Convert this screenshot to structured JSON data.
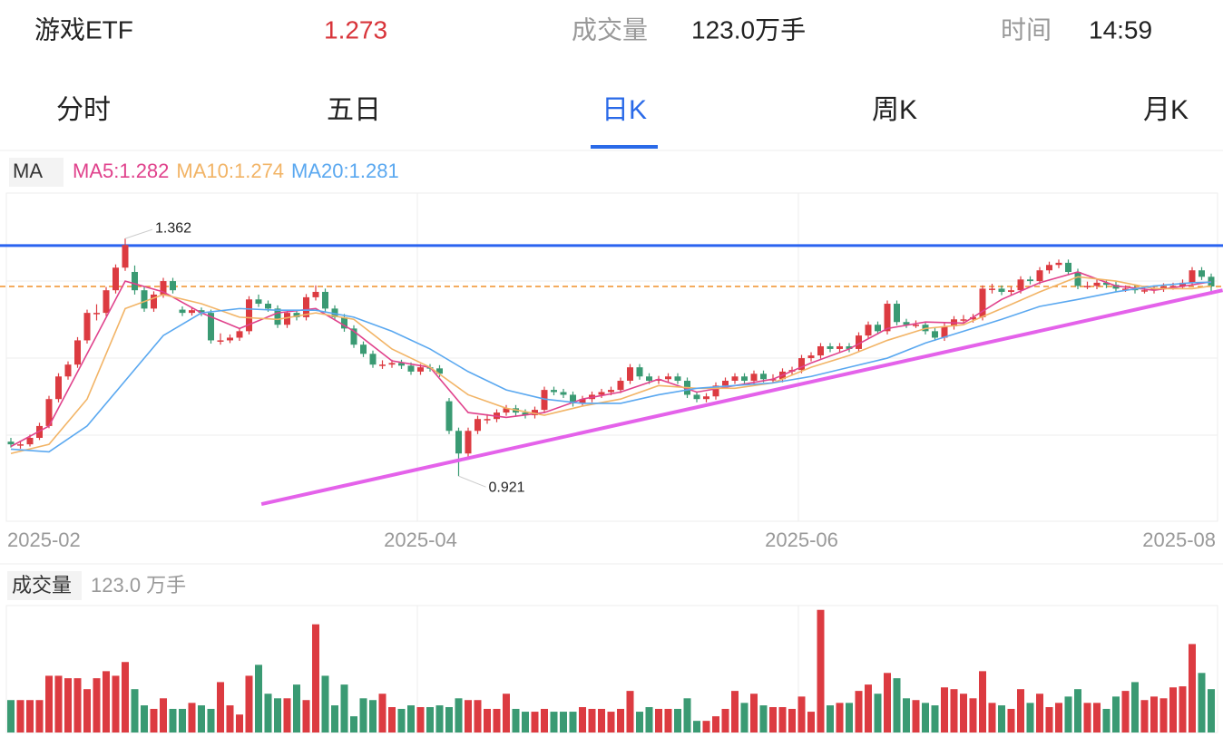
{
  "header": {
    "name": "游戏ETF",
    "price": "1.273",
    "volume_label": "成交量",
    "volume": "123.0万手",
    "time_label": "时间",
    "time": "14:59"
  },
  "tabs": [
    "分时",
    "五日",
    "日K",
    "周K",
    "月K"
  ],
  "active_tab": "日K",
  "chart_data": {
    "type": "candlestick",
    "indicator": "MA",
    "up_color": "#dc3b41",
    "down_color": "#3a9a73",
    "ylim": [
      0.854,
      1.443
    ],
    "xlabels": [
      {
        "index": 0,
        "label": "2025-02"
      },
      {
        "index": 43,
        "label": "2025-04"
      },
      {
        "index": 83,
        "label": "2025-06"
      },
      {
        "index": 126,
        "label": "2025-08"
      }
    ],
    "max_label": "1.362",
    "min_label": "0.921",
    "hlines": [
      {
        "value": 1.349,
        "color": "#2a63f0",
        "style": "solid"
      },
      {
        "value": 1.273,
        "color": "#f0902a",
        "style": "dashed"
      }
    ],
    "trendline": {
      "x": [
        26.3,
        127.2
      ],
      "y": [
        0.869,
        1.266
      ],
      "color": "#e462ea"
    },
    "ma_x": [
      0,
      4,
      8,
      12,
      16,
      20,
      24,
      28,
      32,
      36,
      40,
      44,
      48,
      52,
      56,
      60,
      64,
      68,
      72,
      76,
      80,
      84,
      88,
      92,
      96,
      100,
      104,
      108,
      112,
      116,
      120,
      124,
      126
    ],
    "series": [
      {
        "name": "MA5:1.282",
        "color": "#e0428c",
        "values": [
          0.976,
          1.014,
          1.148,
          1.283,
          1.263,
          1.224,
          1.195,
          1.224,
          1.232,
          1.19,
          1.135,
          1.123,
          1.039,
          1.03,
          1.039,
          1.064,
          1.077,
          1.101,
          1.077,
          1.089,
          1.101,
          1.131,
          1.157,
          1.195,
          1.207,
          1.205,
          1.249,
          1.28,
          1.3,
          1.274,
          1.266,
          1.276,
          1.282
        ]
      },
      {
        "name": "MA10:1.274",
        "color": "#f2b466",
        "values": [
          0.963,
          0.98,
          1.064,
          1.232,
          1.258,
          1.241,
          1.216,
          1.212,
          1.224,
          1.212,
          1.157,
          1.123,
          1.072,
          1.047,
          1.034,
          1.051,
          1.064,
          1.089,
          1.084,
          1.084,
          1.094,
          1.123,
          1.145,
          1.173,
          1.195,
          1.202,
          1.232,
          1.263,
          1.291,
          1.283,
          1.269,
          1.269,
          1.274
        ]
      },
      {
        "name": "MA20:1.281",
        "color": "#5aa8f0",
        "values": [
          0.971,
          0.966,
          1.014,
          1.098,
          1.182,
          1.224,
          1.232,
          1.229,
          1.229,
          1.216,
          1.19,
          1.157,
          1.115,
          1.081,
          1.064,
          1.056,
          1.056,
          1.072,
          1.084,
          1.089,
          1.094,
          1.106,
          1.123,
          1.14,
          1.168,
          1.19,
          1.212,
          1.236,
          1.249,
          1.263,
          1.274,
          1.28,
          1.281
        ]
      }
    ],
    "ohlc": [
      [
        0.985,
        0.992,
        0.974,
        0.98
      ],
      [
        0.978,
        0.987,
        0.972,
        0.98
      ],
      [
        0.98,
        0.998,
        0.976,
        0.992
      ],
      [
        0.992,
        1.02,
        0.988,
        1.014
      ],
      [
        1.014,
        1.07,
        1.01,
        1.064
      ],
      [
        1.064,
        1.112,
        1.058,
        1.106
      ],
      [
        1.106,
        1.134,
        1.1,
        1.128
      ],
      [
        1.128,
        1.179,
        1.122,
        1.173
      ],
      [
        1.173,
        1.23,
        1.167,
        1.224
      ],
      [
        1.224,
        1.24,
        1.21,
        1.224
      ],
      [
        1.224,
        1.272,
        1.218,
        1.266
      ],
      [
        1.266,
        1.314,
        1.26,
        1.308
      ],
      [
        1.308,
        1.362,
        1.302,
        1.35
      ],
      [
        1.3,
        1.312,
        1.258,
        1.266
      ],
      [
        1.266,
        1.272,
        1.226,
        1.232
      ],
      [
        1.232,
        1.264,
        1.226,
        1.258
      ],
      [
        1.258,
        1.289,
        1.252,
        1.283
      ],
      [
        1.283,
        1.289,
        1.26,
        1.266
      ],
      [
        1.23,
        1.236,
        1.218,
        1.224
      ],
      [
        1.224,
        1.235,
        1.219,
        1.229
      ],
      [
        1.229,
        1.234,
        1.218,
        1.224
      ],
      [
        1.224,
        1.23,
        1.167,
        1.173
      ],
      [
        1.173,
        1.186,
        1.165,
        1.173
      ],
      [
        1.173,
        1.184,
        1.168,
        1.178
      ],
      [
        1.178,
        1.196,
        1.172,
        1.19
      ],
      [
        1.19,
        1.255,
        1.184,
        1.249
      ],
      [
        1.249,
        1.258,
        1.235,
        1.241
      ],
      [
        1.241,
        1.247,
        1.226,
        1.232
      ],
      [
        1.232,
        1.238,
        1.196,
        1.202
      ],
      [
        1.202,
        1.23,
        1.196,
        1.224
      ],
      [
        1.224,
        1.23,
        1.21,
        1.216
      ],
      [
        1.216,
        1.259,
        1.21,
        1.253
      ],
      [
        1.253,
        1.275,
        1.247,
        1.263
      ],
      [
        1.263,
        1.269,
        1.226,
        1.232
      ],
      [
        1.232,
        1.238,
        1.21,
        1.216
      ],
      [
        1.216,
        1.222,
        1.189,
        1.195
      ],
      [
        1.195,
        1.201,
        1.159,
        1.165
      ],
      [
        1.165,
        1.171,
        1.142,
        1.148
      ],
      [
        1.148,
        1.154,
        1.122,
        1.128
      ],
      [
        1.128,
        1.136,
        1.12,
        1.128
      ],
      [
        1.128,
        1.137,
        1.122,
        1.131
      ],
      [
        1.131,
        1.137,
        1.12,
        1.126
      ],
      [
        1.126,
        1.132,
        1.109,
        1.115
      ],
      [
        1.115,
        1.129,
        1.109,
        1.123
      ],
      [
        1.123,
        1.129,
        1.115,
        1.121
      ],
      [
        1.121,
        1.127,
        1.105,
        1.111
      ],
      [
        1.06,
        1.066,
        0.999,
        1.005
      ],
      [
        1.005,
        1.011,
        0.921,
        0.963
      ],
      [
        0.963,
        1.011,
        0.957,
        1.005
      ],
      [
        1.005,
        1.033,
        0.999,
        1.027
      ],
      [
        1.027,
        1.036,
        1.018,
        1.027
      ],
      [
        1.027,
        1.045,
        1.021,
        1.039
      ],
      [
        1.039,
        1.053,
        1.033,
        1.047
      ],
      [
        1.047,
        1.053,
        1.033,
        1.039
      ],
      [
        1.039,
        1.045,
        1.028,
        1.034
      ],
      [
        1.034,
        1.05,
        1.028,
        1.044
      ],
      [
        1.044,
        1.087,
        1.038,
        1.081
      ],
      [
        1.081,
        1.087,
        1.071,
        1.077
      ],
      [
        1.077,
        1.083,
        1.066,
        1.072
      ],
      [
        1.072,
        1.078,
        1.05,
        1.056
      ],
      [
        1.056,
        1.07,
        1.05,
        1.064
      ],
      [
        1.064,
        1.078,
        1.058,
        1.072
      ],
      [
        1.072,
        1.083,
        1.066,
        1.077
      ],
      [
        1.077,
        1.087,
        1.071,
        1.081
      ],
      [
        1.081,
        1.104,
        1.075,
        1.098
      ],
      [
        1.098,
        1.129,
        1.092,
        1.123
      ],
      [
        1.123,
        1.129,
        1.1,
        1.106
      ],
      [
        1.106,
        1.112,
        1.092,
        1.098
      ],
      [
        1.098,
        1.107,
        1.092,
        1.101
      ],
      [
        1.101,
        1.112,
        1.095,
        1.106
      ],
      [
        1.106,
        1.112,
        1.092,
        1.098
      ],
      [
        1.098,
        1.104,
        1.066,
        1.072
      ],
      [
        1.072,
        1.078,
        1.058,
        1.064
      ],
      [
        1.064,
        1.075,
        1.058,
        1.069
      ],
      [
        1.069,
        1.095,
        1.063,
        1.089
      ],
      [
        1.089,
        1.104,
        1.083,
        1.098
      ],
      [
        1.098,
        1.112,
        1.092,
        1.106
      ],
      [
        1.106,
        1.112,
        1.092,
        1.098
      ],
      [
        1.098,
        1.117,
        1.092,
        1.111
      ],
      [
        1.111,
        1.117,
        1.095,
        1.101
      ],
      [
        1.101,
        1.11,
        1.095,
        1.101
      ],
      [
        1.101,
        1.121,
        1.095,
        1.115
      ],
      [
        1.115,
        1.124,
        1.109,
        1.118
      ],
      [
        1.118,
        1.146,
        1.112,
        1.14
      ],
      [
        1.14,
        1.151,
        1.134,
        1.145
      ],
      [
        1.145,
        1.168,
        1.139,
        1.162
      ],
      [
        1.162,
        1.168,
        1.151,
        1.157
      ],
      [
        1.157,
        1.168,
        1.151,
        1.162
      ],
      [
        1.162,
        1.168,
        1.151,
        1.157
      ],
      [
        1.157,
        1.188,
        1.151,
        1.182
      ],
      [
        1.182,
        1.208,
        1.176,
        1.202
      ],
      [
        1.202,
        1.208,
        1.184,
        1.19
      ],
      [
        1.19,
        1.247,
        1.184,
        1.241
      ],
      [
        1.241,
        1.247,
        1.201,
        1.207
      ],
      [
        1.207,
        1.213,
        1.196,
        1.202
      ],
      [
        1.202,
        1.21,
        1.196,
        1.202
      ],
      [
        1.202,
        1.208,
        1.184,
        1.19
      ],
      [
        1.19,
        1.196,
        1.172,
        1.178
      ],
      [
        1.178,
        1.205,
        1.172,
        1.199
      ],
      [
        1.199,
        1.218,
        1.193,
        1.212
      ],
      [
        1.212,
        1.22,
        1.206,
        1.212
      ],
      [
        1.212,
        1.222,
        1.206,
        1.216
      ],
      [
        1.216,
        1.275,
        1.21,
        1.269
      ],
      [
        1.269,
        1.278,
        1.26,
        1.269
      ],
      [
        1.269,
        1.275,
        1.257,
        1.263
      ],
      [
        1.263,
        1.272,
        1.257,
        1.266
      ],
      [
        1.266,
        1.292,
        1.26,
        1.286
      ],
      [
        1.286,
        1.292,
        1.277,
        1.283
      ],
      [
        1.283,
        1.309,
        1.277,
        1.303
      ],
      [
        1.303,
        1.319,
        1.297,
        1.313
      ],
      [
        1.313,
        1.323,
        1.307,
        1.317
      ],
      [
        1.317,
        1.323,
        1.294,
        1.3
      ],
      [
        1.3,
        1.306,
        1.268,
        1.274
      ],
      [
        1.274,
        1.282,
        1.268,
        1.274
      ],
      [
        1.274,
        1.286,
        1.268,
        1.28
      ],
      [
        1.28,
        1.286,
        1.27,
        1.276
      ],
      [
        1.276,
        1.282,
        1.263,
        1.269
      ],
      [
        1.269,
        1.275,
        1.263,
        1.269
      ],
      [
        1.269,
        1.275,
        1.26,
        1.266
      ],
      [
        1.266,
        1.272,
        1.26,
        1.266
      ],
      [
        1.266,
        1.275,
        1.26,
        1.269
      ],
      [
        1.269,
        1.279,
        1.263,
        1.273
      ],
      [
        1.273,
        1.28,
        1.267,
        1.274
      ],
      [
        1.274,
        1.286,
        1.268,
        1.28
      ],
      [
        1.28,
        1.309,
        1.274,
        1.303
      ],
      [
        1.303,
        1.309,
        1.285,
        1.291
      ],
      [
        1.291,
        1.297,
        1.258,
        1.273
      ]
    ]
  },
  "volume_chart": {
    "type": "bar",
    "label": "成交量",
    "value_label": "123.0 万手",
    "ylim": [
      0,
      355
    ],
    "values": [
      92,
      92,
      92,
      92,
      161,
      161,
      154,
      154,
      123,
      154,
      174,
      161,
      200,
      123,
      77,
      67,
      97,
      67,
      67,
      84,
      77,
      67,
      143,
      77,
      51,
      161,
      192,
      110,
      97,
      97,
      136,
      92,
      307,
      161,
      77,
      136,
      46,
      97,
      92,
      110,
      72,
      67,
      77,
      72,
      72,
      77,
      72,
      97,
      92,
      92,
      67,
      67,
      110,
      67,
      59,
      59,
      67,
      59,
      59,
      59,
      72,
      67,
      67,
      59,
      67,
      118,
      59,
      72,
      67,
      67,
      67,
      97,
      33,
      33,
      46,
      67,
      118,
      84,
      110,
      77,
      72,
      72,
      67,
      102,
      59,
      348,
      77,
      84,
      84,
      118,
      136,
      110,
      169,
      154,
      97,
      92,
      84,
      77,
      128,
      123,
      110,
      97,
      174,
      84,
      77,
      67,
      123,
      84,
      110,
      72,
      84,
      102,
      123,
      84,
      84,
      67,
      102,
      118,
      143,
      92,
      102,
      97,
      128,
      131,
      251,
      169,
      123
    ]
  }
}
